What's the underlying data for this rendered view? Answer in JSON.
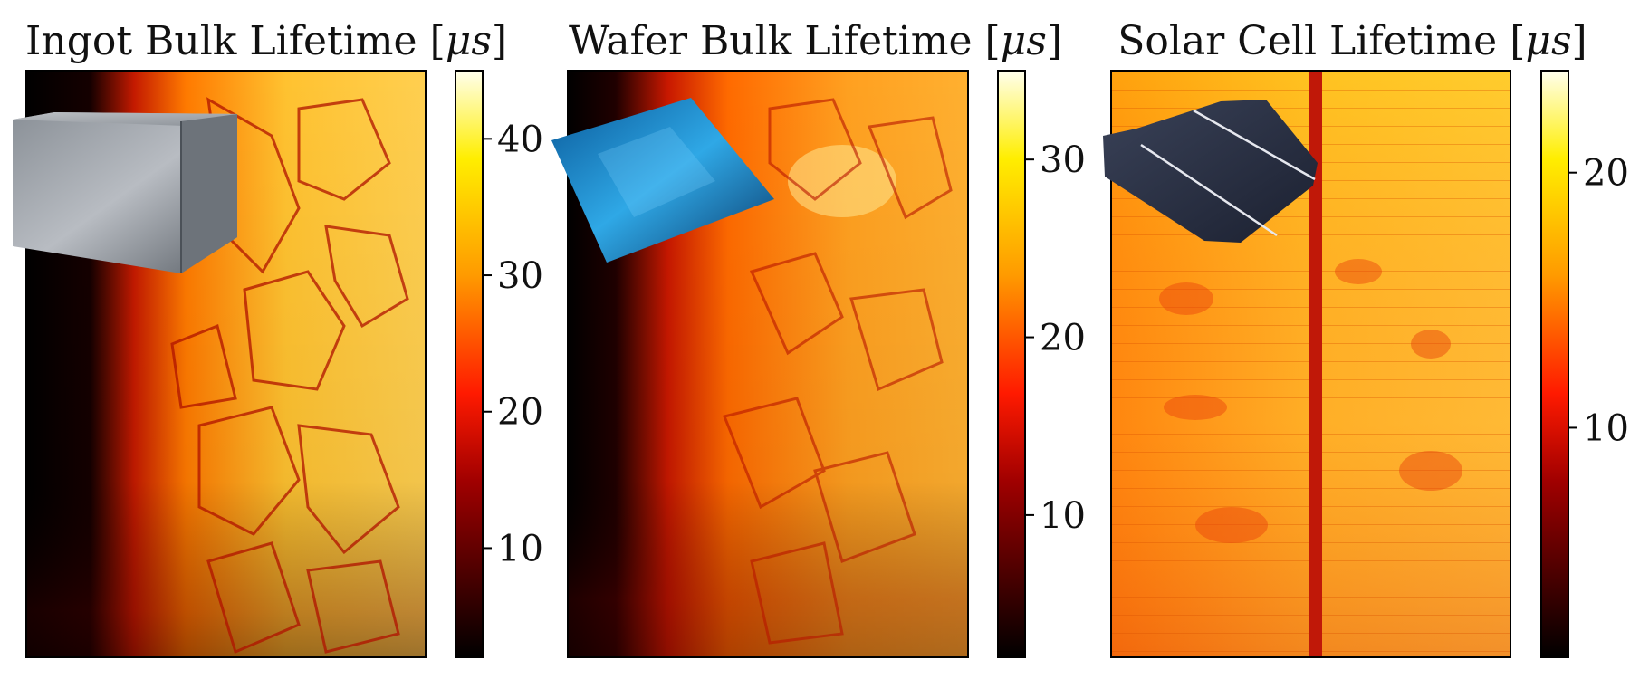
{
  "chart_data": [
    {
      "type": "heatmap",
      "title": "Ingot Bulk Lifetime",
      "unit": "μs",
      "colormap": "hot",
      "colorbar": {
        "min": 2,
        "max": 45,
        "ticks": [
          10,
          20,
          30,
          40
        ]
      },
      "inset": "ingot-block-photo"
    },
    {
      "type": "heatmap",
      "title": "Wafer Bulk Lifetime",
      "unit": "μs",
      "colormap": "hot",
      "colorbar": {
        "min": 2,
        "max": 35,
        "ticks": [
          10,
          20,
          30
        ]
      },
      "inset": "wafer-photo"
    },
    {
      "type": "heatmap",
      "title": "Solar Cell Lifetime",
      "unit": "μs",
      "colormap": "hot",
      "colorbar": {
        "min": 1,
        "max": 24,
        "ticks": [
          10,
          20
        ]
      },
      "inset": "solar-cell-photo"
    }
  ]
}
